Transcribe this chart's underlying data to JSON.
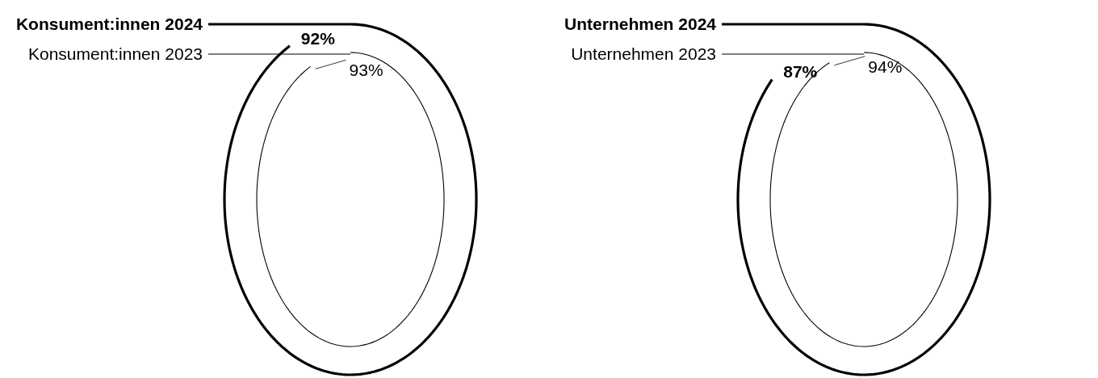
{
  "chart_data": [
    {
      "type": "other",
      "categories": [
        "Konsument:innen 2024",
        "Konsument:innen 2023"
      ],
      "values": [
        92,
        93
      ],
      "colors": [
        "#000000",
        "#000000"
      ],
      "value_labels": [
        "92%",
        "93%"
      ]
    },
    {
      "type": "other",
      "categories": [
        "Unternehmen 2024",
        "Unternehmen 2023"
      ],
      "values": [
        87,
        94
      ],
      "colors": [
        "#000000",
        "#000000"
      ],
      "value_labels": [
        "87%",
        "94%"
      ]
    }
  ]
}
